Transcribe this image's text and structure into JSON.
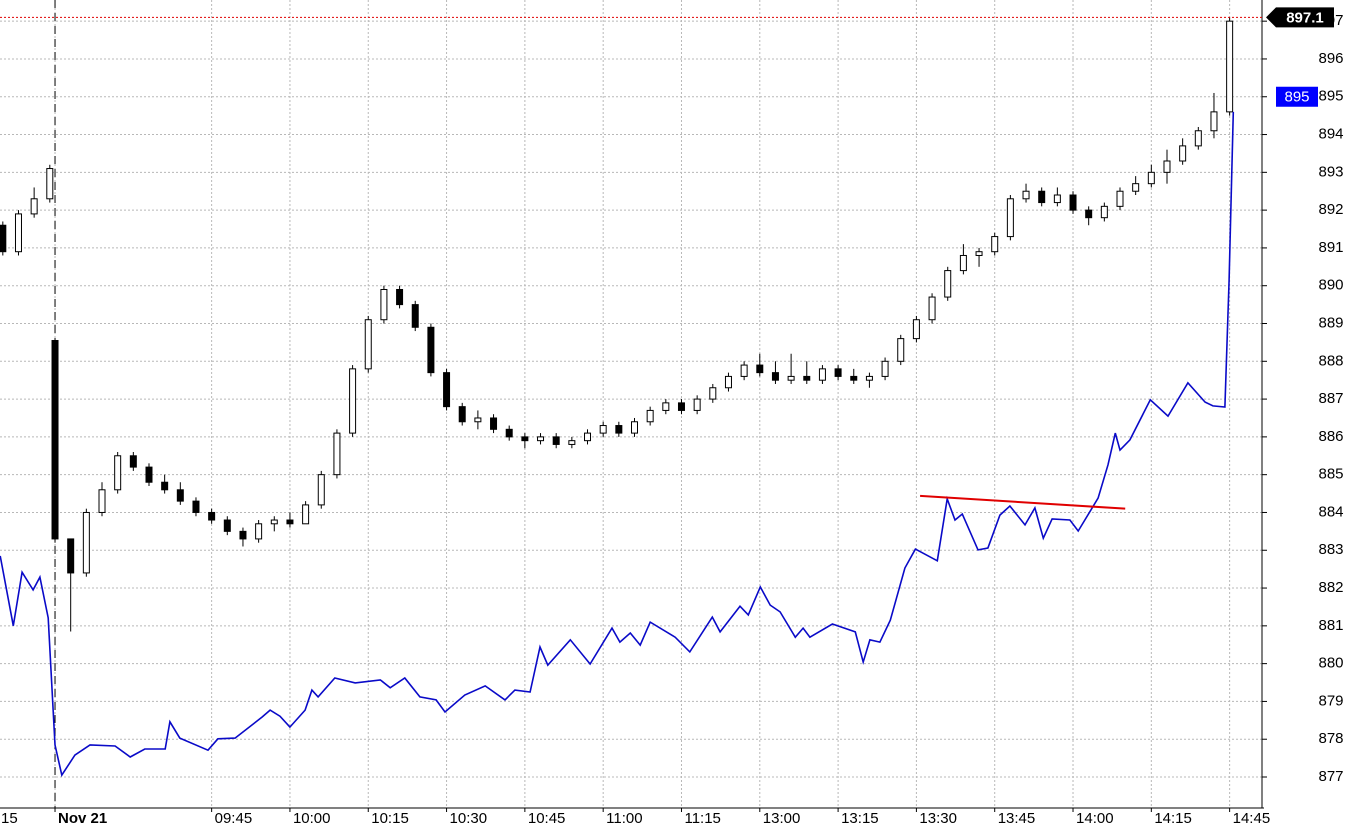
{
  "chart_data": {
    "type": "candlestick",
    "xlim": [
      -10.54,
      231.2
    ],
    "ylim": [
      876.18,
      897.56
    ],
    "yticks": [
      877,
      878,
      879,
      880,
      881,
      882,
      883,
      884,
      885,
      886,
      887,
      888,
      889,
      890,
      891,
      892,
      893,
      894,
      895,
      896,
      897
    ],
    "xticks": [
      {
        "value": -15,
        "label": "15"
      },
      {
        "value": 0,
        "label": "Nov 21"
      },
      {
        "value": 30,
        "label": "09:45"
      },
      {
        "value": 45,
        "label": "10:00"
      },
      {
        "value": 60,
        "label": "10:15"
      },
      {
        "value": 75,
        "label": "10:30"
      },
      {
        "value": 90,
        "label": "10:45"
      },
      {
        "value": 105,
        "label": "11:00"
      },
      {
        "value": 120,
        "label": "11:15"
      },
      {
        "value": 135,
        "label": "13:00"
      },
      {
        "value": 150,
        "label": "13:15"
      },
      {
        "value": 165,
        "label": "13:30"
      },
      {
        "value": 180,
        "label": "13:45"
      },
      {
        "value": 195,
        "label": "14:00"
      },
      {
        "value": 210,
        "label": "14:15"
      },
      {
        "value": 225,
        "label": "14:45"
      }
    ],
    "grid": true,
    "divider": {
      "x": 0
    },
    "up_color": "#ffffff",
    "down_color": "#000000",
    "x": [
      -10,
      -7,
      -4,
      -1,
      0,
      3,
      6,
      9,
      12,
      15,
      18,
      21,
      24,
      27,
      30,
      33,
      36,
      39,
      42,
      45,
      48,
      51,
      54,
      57,
      60,
      63,
      66,
      69,
      72,
      75,
      78,
      81,
      84,
      87,
      90,
      93,
      96,
      99,
      102,
      105,
      108,
      111,
      114,
      117,
      120,
      123,
      126,
      129,
      132,
      135,
      138,
      141,
      144,
      147,
      150,
      153,
      156,
      159,
      162,
      165,
      168,
      171,
      174,
      177,
      180,
      183,
      186,
      189,
      192,
      195,
      198,
      201,
      204,
      207,
      210,
      213,
      216,
      219,
      222,
      225
    ],
    "open": [
      891.6,
      890.9,
      891.9,
      892.3,
      888.55,
      883.3,
      882.4,
      884.0,
      884.6,
      885.5,
      885.2,
      884.8,
      884.6,
      884.3,
      884.0,
      883.8,
      883.5,
      883.3,
      883.7,
      883.8,
      883.7,
      884.2,
      885.0,
      886.1,
      887.8,
      889.1,
      889.9,
      889.5,
      888.9,
      887.7,
      886.8,
      886.4,
      886.5,
      886.2,
      886.0,
      885.9,
      886.0,
      885.8,
      885.9,
      886.1,
      886.3,
      886.1,
      886.4,
      886.7,
      886.9,
      886.7,
      887.0,
      887.3,
      887.6,
      887.9,
      887.7,
      887.5,
      887.6,
      887.5,
      887.8,
      887.6,
      887.5,
      887.6,
      888.0,
      888.6,
      889.1,
      889.7,
      890.4,
      890.8,
      890.9,
      891.3,
      892.3,
      892.5,
      892.2,
      892.4,
      892.0,
      891.8,
      892.1,
      892.5,
      892.7,
      893.0,
      893.3,
      893.7,
      894.1,
      894.6
    ],
    "high": [
      891.7,
      892.0,
      892.6,
      893.2,
      888.6,
      883.3,
      884.1,
      884.8,
      885.6,
      885.6,
      885.3,
      885.0,
      884.8,
      884.4,
      884.1,
      883.9,
      883.6,
      883.8,
      883.9,
      884.0,
      884.3,
      885.1,
      886.2,
      887.9,
      889.2,
      890.0,
      890.0,
      889.6,
      889.0,
      887.8,
      886.9,
      886.7,
      886.6,
      886.3,
      886.1,
      886.1,
      886.1,
      886.0,
      886.2,
      886.4,
      886.4,
      886.5,
      886.8,
      887.0,
      887.0,
      887.1,
      887.4,
      887.7,
      888.0,
      888.2,
      888.0,
      888.2,
      888.0,
      887.9,
      887.9,
      887.8,
      887.7,
      888.1,
      888.7,
      889.2,
      889.8,
      890.5,
      891.1,
      891.0,
      891.4,
      892.4,
      892.7,
      892.6,
      892.6,
      892.5,
      892.1,
      892.2,
      892.6,
      892.9,
      893.2,
      893.6,
      893.9,
      894.2,
      895.1,
      897.1
    ],
    "low": [
      890.8,
      890.8,
      891.8,
      892.2,
      883.2,
      880.85,
      882.3,
      883.9,
      884.5,
      885.1,
      884.7,
      884.5,
      884.2,
      883.9,
      883.7,
      883.4,
      883.1,
      883.2,
      883.5,
      883.6,
      883.7,
      884.1,
      884.9,
      886.0,
      887.7,
      889.0,
      889.4,
      888.8,
      887.6,
      886.7,
      886.3,
      886.2,
      886.1,
      885.9,
      885.7,
      885.8,
      885.7,
      885.7,
      885.8,
      886.0,
      886.0,
      886.0,
      886.3,
      886.6,
      886.6,
      886.6,
      886.9,
      887.2,
      887.5,
      887.6,
      887.4,
      887.4,
      887.4,
      887.4,
      887.5,
      887.4,
      887.3,
      887.5,
      887.9,
      888.5,
      889.0,
      889.6,
      890.3,
      890.5,
      890.8,
      891.2,
      892.2,
      892.1,
      892.1,
      891.9,
      891.6,
      891.7,
      892.0,
      892.4,
      892.6,
      892.7,
      893.2,
      893.6,
      893.9,
      894.5
    ],
    "close": [
      890.9,
      891.9,
      892.3,
      893.1,
      883.3,
      882.4,
      884.0,
      884.6,
      885.5,
      885.2,
      884.8,
      884.6,
      884.3,
      884.0,
      883.8,
      883.5,
      883.3,
      883.7,
      883.8,
      883.7,
      884.2,
      885.0,
      886.1,
      887.8,
      889.1,
      889.9,
      889.5,
      888.9,
      887.7,
      886.8,
      886.4,
      886.5,
      886.2,
      886.0,
      885.9,
      886.0,
      885.8,
      885.9,
      886.1,
      886.3,
      886.1,
      886.4,
      886.7,
      886.9,
      886.7,
      887.0,
      887.3,
      887.6,
      887.9,
      887.7,
      887.5,
      887.6,
      887.5,
      887.8,
      887.6,
      887.5,
      887.6,
      888.0,
      888.6,
      889.1,
      889.7,
      890.4,
      890.8,
      890.9,
      891.3,
      892.3,
      892.5,
      892.2,
      892.4,
      892.0,
      891.8,
      892.1,
      892.5,
      892.7,
      893.0,
      893.3,
      893.7,
      894.1,
      894.6,
      897.0
    ],
    "overlay": {
      "color": "#0a0ac8",
      "x": [
        -10.5,
        -8.0,
        -6.3,
        -4.2,
        -2.9,
        -1.3,
        0,
        1.3,
        3.8,
        6.7,
        11.5,
        14.4,
        17.2,
        21.1,
        22.0,
        23.9,
        29.3,
        31.2,
        34.5,
        39.7,
        41.2,
        43.1,
        45.0,
        47.9,
        49.2,
        50.4,
        53.6,
        57.5,
        62.3,
        64.2,
        67.0,
        69.9,
        73.0,
        74.7,
        78.5,
        82.4,
        86.2,
        88.1,
        91.0,
        92.9,
        94.4,
        98.7,
        102.5,
        106.7,
        108.2,
        110.2,
        112.1,
        114.0,
        118.8,
        121.6,
        125.9,
        127.4,
        131.2,
        132.8,
        135.1,
        137.0,
        138.9,
        141.8,
        143.3,
        144.6,
        148.9,
        153.3,
        154.8,
        156.1,
        158.0,
        160.0,
        162.8,
        164.8,
        169.0,
        170.9,
        172.4,
        173.8,
        176.8,
        178.7,
        181.0,
        182.9,
        185.8,
        187.7,
        189.3,
        191.0,
        194.4,
        196.0,
        199.8,
        201.7,
        203.1,
        204.0,
        205.9,
        209.8,
        213.2,
        217.0,
        220.3,
        221.8,
        224.1,
        224.9,
        225.7
      ],
      "values": [
        882.85,
        881.0,
        882.42,
        881.95,
        882.29,
        881.21,
        877.85,
        877.05,
        877.58,
        877.85,
        877.82,
        877.53,
        877.74,
        877.74,
        878.46,
        878.03,
        877.71,
        878.01,
        878.03,
        878.59,
        878.77,
        878.61,
        878.32,
        878.77,
        879.3,
        879.12,
        879.62,
        879.49,
        879.57,
        879.36,
        879.62,
        879.12,
        879.04,
        878.72,
        879.17,
        879.41,
        879.04,
        879.3,
        879.25,
        880.44,
        879.96,
        880.63,
        879.99,
        880.94,
        880.57,
        880.81,
        880.49,
        881.1,
        880.7,
        880.31,
        881.23,
        880.84,
        881.52,
        881.29,
        882.03,
        881.55,
        881.37,
        880.7,
        880.94,
        880.7,
        881.05,
        880.84,
        880.04,
        880.63,
        880.57,
        881.15,
        882.53,
        883.03,
        882.72,
        884.36,
        883.8,
        883.96,
        883.01,
        883.06,
        883.93,
        884.17,
        883.67,
        884.12,
        883.32,
        883.83,
        883.8,
        883.51,
        884.38,
        885.26,
        886.1,
        885.65,
        885.92,
        886.98,
        886.55,
        887.43,
        886.92,
        886.82,
        886.79,
        890.15,
        894.6
      ]
    },
    "trendline": {
      "color": "#e00000",
      "x": [
        165.7,
        205.0
      ],
      "values": [
        884.44,
        884.1
      ]
    },
    "tags": [
      {
        "value": 897.1,
        "color": "#000000"
      },
      {
        "value": 895,
        "color": "#0000ff"
      }
    ]
  }
}
